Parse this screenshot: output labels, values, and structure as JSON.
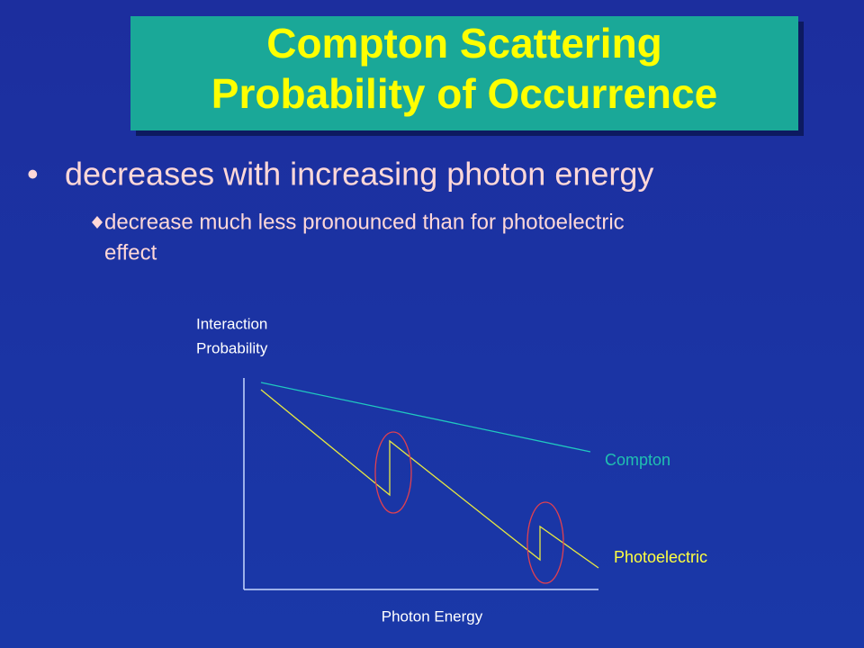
{
  "slide": {
    "title": [
      "Compton Scattering",
      "Probability of Occurrence"
    ],
    "bullet": "decreases with increasing photon energy",
    "sub_bullet": [
      "decrease much less pronounced than for photoelectric",
      "effect"
    ],
    "diagram": {
      "y_axis_label": [
        "Interaction",
        "Probability"
      ],
      "x_axis_label": "Photon Energy",
      "compton_label": "Compton",
      "photoelectric_label": "Photoelectric"
    }
  }
}
